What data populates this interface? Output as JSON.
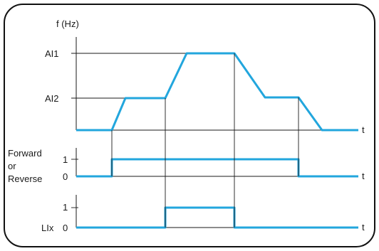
{
  "colors": {
    "trace": "#22a6dd",
    "ink": "#1a1a1a"
  },
  "frequency_panel": {
    "y_label": "f (Hz)",
    "level_labels": [
      "AI1",
      "AI2"
    ],
    "time_label": "t"
  },
  "direction_panel": {
    "signal_label_lines": [
      "Forward",
      "or",
      "Reverse"
    ],
    "high_label": "1",
    "low_label": "0",
    "time_label": "t"
  },
  "lix_panel": {
    "signal_label": "LIx",
    "high_label": "1",
    "low_label": "0",
    "time_label": "t"
  }
}
